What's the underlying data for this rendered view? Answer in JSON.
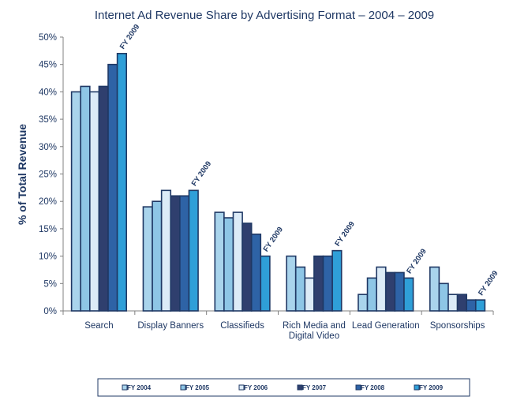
{
  "chart_data": {
    "type": "bar",
    "title": "Internet Ad Revenue Share by Advertising Format – 2004 – 2009",
    "xlabel": "",
    "ylabel": "% of Total Revenue",
    "ylim": [
      0,
      50
    ],
    "yticks": [
      "0%",
      "5%",
      "10%",
      "15%",
      "20%",
      "25%",
      "30%",
      "35%",
      "40%",
      "45%",
      "50%"
    ],
    "categories": [
      [
        "Search"
      ],
      [
        "Display Banners"
      ],
      [
        "Classifieds"
      ],
      [
        "Rich Media and",
        "Digital Video"
      ],
      [
        "Lead Generation"
      ],
      [
        "Sponsorships"
      ]
    ],
    "series": [
      {
        "name": "FY 2004",
        "color": "#a9d4ec",
        "values": [
          40,
          19,
          18,
          10,
          3,
          8
        ]
      },
      {
        "name": "FY 2005",
        "color": "#8ec6e6",
        "values": [
          41,
          20,
          17,
          8,
          6,
          5
        ]
      },
      {
        "name": "FY 2006",
        "color": "#dcebf7",
        "values": [
          40,
          22,
          18,
          6,
          8,
          3
        ]
      },
      {
        "name": "FY 2007",
        "color": "#2f3f6e",
        "values": [
          41,
          21,
          16,
          10,
          7,
          3
        ]
      },
      {
        "name": "FY 2008",
        "color": "#2e63a6",
        "values": [
          45,
          21,
          14,
          10,
          7,
          2
        ]
      },
      {
        "name": "FY 2009",
        "color": "#2f9fd8",
        "values": [
          47,
          22,
          10,
          11,
          6,
          2
        ]
      }
    ],
    "annotation": "FY 2009",
    "legend": "bottom",
    "grid": false
  }
}
